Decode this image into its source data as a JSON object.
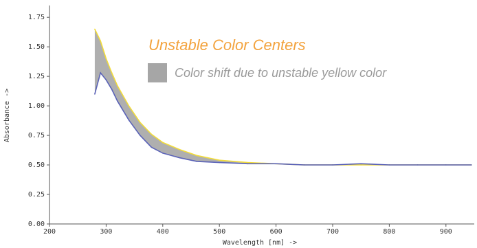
{
  "chart_data": {
    "type": "line",
    "title": "Unstable Color Centers",
    "xlabel": "Wavelength [nm] ->",
    "ylabel": "Absorbance ->",
    "xlim": [
      200,
      950
    ],
    "ylim": [
      0,
      1.85
    ],
    "x_ticks": [
      "200",
      "300",
      "400",
      "500",
      "600",
      "700",
      "800",
      "900"
    ],
    "y_ticks": [
      "0.00",
      "0.25",
      "0.50",
      "0.75",
      "1.00",
      "1.25",
      "1.50",
      "1.75"
    ],
    "legend": [
      {
        "label": "Color shift due to unstable yellow color",
        "color": "#a6a6a6"
      }
    ],
    "series": [
      {
        "color": "#f2dc3a",
        "x": [
          280,
          290,
          300,
          310,
          320,
          340,
          360,
          380,
          400,
          430,
          460,
          500,
          550,
          600,
          650,
          700,
          750,
          800,
          850,
          900,
          945
        ],
        "y": [
          1.65,
          1.55,
          1.4,
          1.28,
          1.17,
          1.0,
          0.86,
          0.76,
          0.69,
          0.63,
          0.58,
          0.54,
          0.52,
          0.51,
          0.5,
          0.5,
          0.5,
          0.5,
          0.5,
          0.5,
          0.5
        ]
      },
      {
        "color": "#5b63b8",
        "x": [
          280,
          290,
          300,
          310,
          320,
          340,
          360,
          380,
          400,
          430,
          460,
          500,
          550,
          600,
          650,
          700,
          750,
          800,
          850,
          900,
          945
        ],
        "y": [
          1.1,
          1.28,
          1.22,
          1.14,
          1.04,
          0.88,
          0.75,
          0.65,
          0.6,
          0.56,
          0.53,
          0.52,
          0.51,
          0.51,
          0.5,
          0.5,
          0.51,
          0.5,
          0.5,
          0.5,
          0.5
        ]
      }
    ],
    "colors": {
      "title": "#f3a33e",
      "band": "#a6a6a6",
      "axis": "#555555"
    }
  }
}
